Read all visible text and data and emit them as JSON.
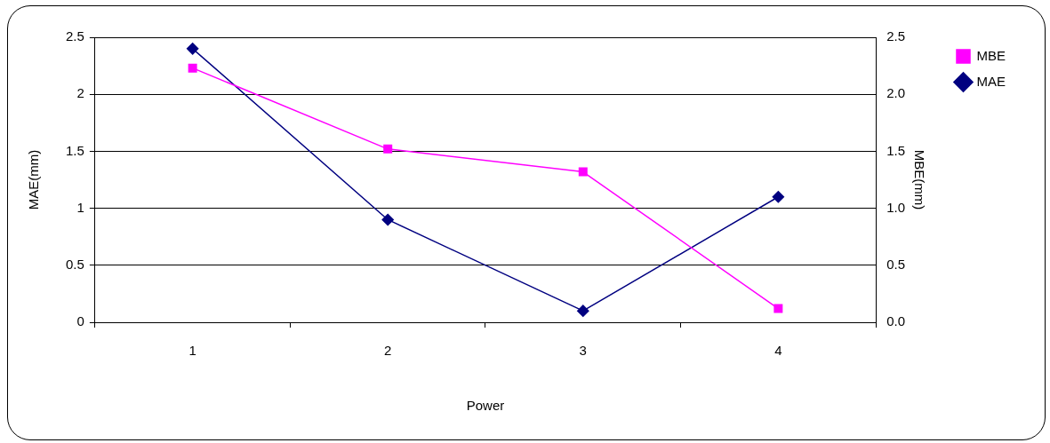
{
  "chart_data": {
    "type": "line",
    "categories": [
      "1",
      "2",
      "3",
      "4"
    ],
    "xlabel": "Power",
    "ylabel": "MAE(mm)",
    "y2label": "MBE(mm)",
    "series": [
      {
        "name": "MBE",
        "color": "#ff00ff",
        "values": [
          2.23,
          1.52,
          1.32,
          0.12
        ],
        "axis": "y2",
        "marker": "square"
      },
      {
        "name": "MAE",
        "color": "#000080",
        "values": [
          2.4,
          0.9,
          0.1,
          1.1
        ],
        "marker": "diamond"
      }
    ],
    "ylim": [
      0,
      2.5
    ],
    "yticks": [
      0,
      0.5,
      1,
      1.5,
      2,
      2.5
    ],
    "y2lim": [
      0,
      2.5
    ],
    "y2ticks": [
      {
        "value": 0,
        "label": "0.0"
      },
      0.5,
      {
        "value": 1,
        "label": "1.0"
      },
      1.5,
      {
        "value": 2,
        "label": "2.0"
      },
      2.5
    ],
    "grid": "y",
    "legend": "top right",
    "line_style": "solid"
  }
}
